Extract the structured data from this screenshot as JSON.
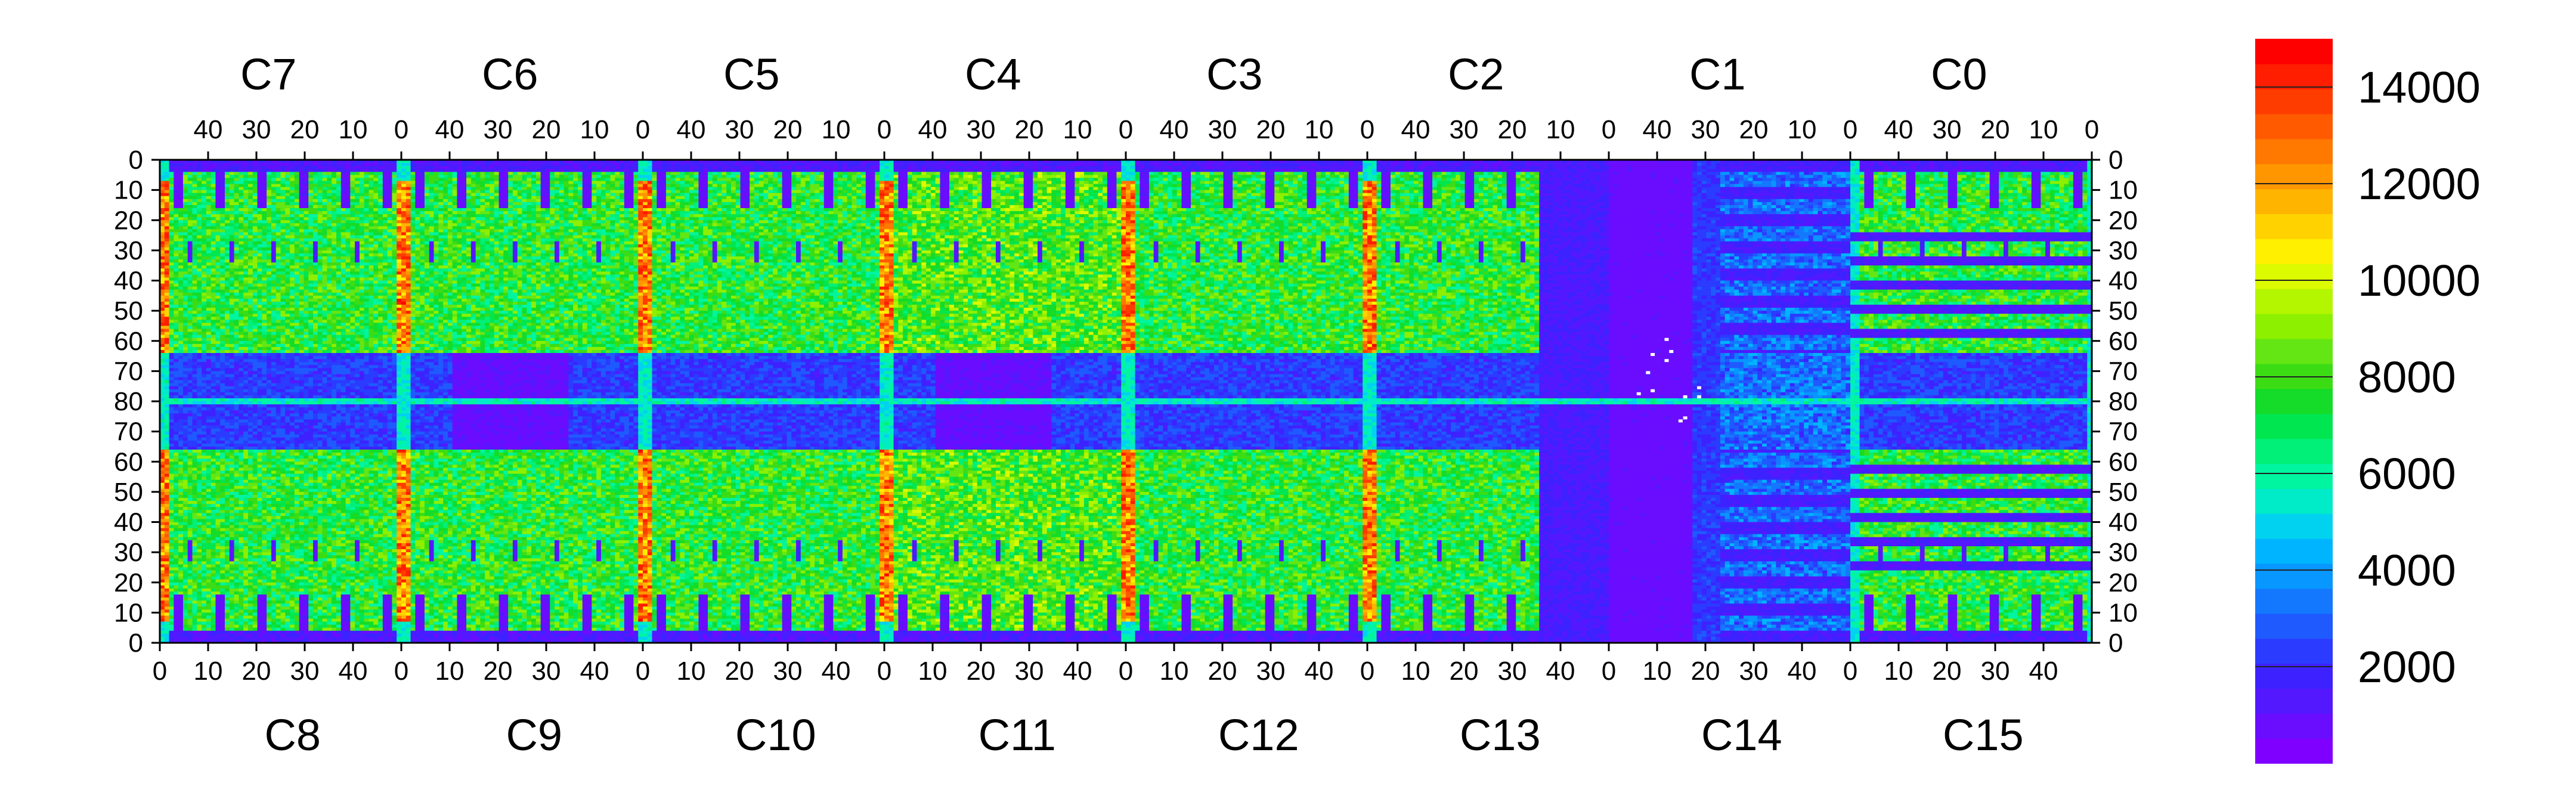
{
  "chart_data": {
    "type": "heatmap",
    "title": "",
    "value_range": [
      0,
      15000
    ],
    "colorbar": {
      "ticks": [
        2000,
        4000,
        6000,
        8000,
        10000,
        12000,
        14000
      ],
      "labels": [
        "2000",
        "4000",
        "6000",
        "8000",
        "10000",
        "12000",
        "14000"
      ],
      "colors": [
        "#7f00ff",
        "#6a0dff",
        "#5418ff",
        "#3d22ff",
        "#2b3bff",
        "#1f5aff",
        "#1478ff",
        "#0896ff",
        "#00b4ff",
        "#00d2f0",
        "#00ebc8",
        "#00f5a0",
        "#00f078",
        "#00e650",
        "#14dc28",
        "#3cdc14",
        "#64e614",
        "#8cf000",
        "#b4f500",
        "#dcfa00",
        "#fff000",
        "#ffd200",
        "#ffb400",
        "#ff9600",
        "#ff7800",
        "#ff5a00",
        "#ff3c00",
        "#ff1e00",
        "#ff0000"
      ]
    },
    "top_chips": [
      "C7",
      "C6",
      "C5",
      "C4",
      "C3",
      "C2",
      "C1",
      "C0"
    ],
    "bottom_chips": [
      "C8",
      "C9",
      "C10",
      "C11",
      "C12",
      "C13",
      "C14",
      "C15"
    ],
    "top_column_ticks": [
      "40",
      "30",
      "20",
      "10",
      "0"
    ],
    "bottom_column_ticks": [
      "0",
      "10",
      "20",
      "30",
      "40"
    ],
    "row_ticks": [
      "0",
      "10",
      "20",
      "30",
      "40",
      "50",
      "60",
      "70",
      "80",
      "70",
      "60",
      "50",
      "40",
      "30",
      "20",
      "10",
      "0"
    ],
    "chip_columns": 52,
    "rows_per_half": 80,
    "features": {
      "high_columns": [
        0,
        10,
        20,
        30,
        40,
        50,
        60,
        70
      ],
      "low_region_rows": [
        64,
        80
      ],
      "quiet_chips": [
        "C13",
        "C14"
      ],
      "empty_pixels_chip": "C14"
    }
  }
}
